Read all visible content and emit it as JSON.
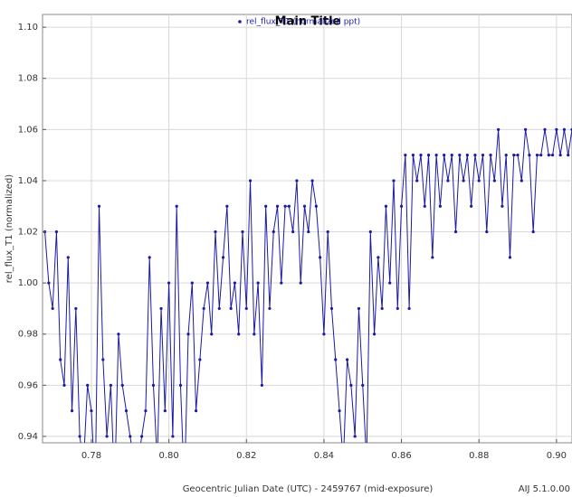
{
  "chart_data": {
    "type": "line",
    "title": "Main Title",
    "x_label": "Geocentric Julian Date (UTC) - 2459767 (mid-exposure)",
    "y_label": "rel_flux_T1 (normalized)",
    "version": "AIJ 5.1.0.00",
    "xlim": [
      0.7674,
      0.904
    ],
    "ylim": [
      0.9375,
      1.105
    ],
    "xticks": [
      0.78,
      {
        "value": 0.8,
        "label": "0.80"
      },
      0.82,
      0.84,
      0.86,
      0.88,
      {
        "value": 0.9,
        "label": "0.90"
      }
    ],
    "yticks": [
      0.94,
      0.96,
      0.98,
      {
        "value": 1,
        "label": "1.00"
      },
      1.02,
      1.04,
      1.06,
      1.08,
      {
        "value": 1.1,
        "label": "1.10"
      }
    ],
    "grid": true,
    "legend": "top",
    "x": [
      0.768,
      0.769,
      0.77,
      0.771,
      0.772,
      0.773,
      0.774,
      0.775,
      0.776,
      0.777,
      0.778,
      0.779,
      0.78,
      0.781,
      0.782,
      0.783,
      0.784,
      0.785,
      0.786,
      0.787,
      0.788,
      0.789,
      0.79,
      0.791,
      0.792,
      0.793,
      0.794,
      0.795,
      0.796,
      0.797,
      0.798,
      0.799,
      0.8,
      0.801,
      0.802,
      0.803,
      0.804,
      0.805,
      0.806,
      0.807,
      0.808,
      0.809,
      0.81,
      0.811,
      0.812,
      0.813,
      0.814,
      0.815,
      0.816,
      0.817,
      0.818,
      0.819,
      0.82,
      0.821,
      0.822,
      0.823,
      0.824,
      0.825,
      0.826,
      0.827,
      0.828,
      0.829,
      0.83,
      0.831,
      0.832,
      0.833,
      0.834,
      0.835,
      0.836,
      0.837,
      0.838,
      0.839,
      0.84,
      0.841,
      0.842,
      0.843,
      0.844,
      0.845,
      0.846,
      0.847,
      0.848,
      0.849,
      0.85,
      0.851,
      0.852,
      0.853,
      0.854,
      0.855,
      0.856,
      0.857,
      0.858,
      0.859,
      0.86,
      0.861,
      0.862,
      0.863,
      0.864,
      0.865,
      0.866,
      0.867,
      0.868,
      0.869,
      0.87,
      0.871,
      0.872,
      0.873,
      0.874,
      0.875,
      0.876,
      0.877,
      0.878,
      0.879,
      0.88,
      0.881,
      0.882,
      0.883,
      0.884,
      0.885,
      0.886,
      0.887,
      0.888,
      0.889,
      0.89,
      0.891,
      0.892,
      0.893,
      0.894,
      0.895,
      0.896,
      0.897,
      0.898,
      0.899,
      0.9,
      0.901,
      0.902,
      0.903,
      0.904
    ],
    "series": [
      {
        "name": "rel_flux_T1 (normalized ppt)",
        "color": "#1a1aa6",
        "values": [
          1.02,
          1.0,
          0.99,
          1.02,
          0.97,
          0.96,
          1.01,
          0.95,
          0.99,
          0.94,
          0.93,
          0.96,
          0.95,
          0.92,
          1.03,
          0.97,
          0.94,
          0.96,
          0.92,
          0.98,
          0.96,
          0.95,
          0.94,
          0.93,
          0.93,
          0.94,
          0.95,
          1.01,
          0.96,
          0.93,
          0.99,
          0.95,
          1.0,
          0.94,
          1.03,
          0.96,
          0.92,
          0.98,
          1.0,
          0.95,
          0.97,
          0.99,
          1.0,
          0.98,
          1.02,
          0.99,
          1.01,
          1.03,
          0.99,
          1.0,
          0.98,
          1.02,
          0.99,
          1.04,
          0.98,
          1.0,
          0.96,
          1.03,
          0.99,
          1.02,
          1.03,
          1.0,
          1.03,
          1.03,
          1.02,
          1.04,
          1.0,
          1.03,
          1.02,
          1.04,
          1.03,
          1.01,
          0.98,
          1.02,
          0.99,
          0.97,
          0.95,
          0.93,
          0.97,
          0.96,
          0.94,
          0.99,
          0.96,
          0.93,
          1.02,
          0.98,
          1.01,
          0.99,
          1.03,
          1.0,
          1.04,
          0.99,
          1.03,
          1.05,
          0.99,
          1.05,
          1.04,
          1.05,
          1.03,
          1.05,
          1.01,
          1.05,
          1.03,
          1.05,
          1.04,
          1.05,
          1.02,
          1.05,
          1.04,
          1.05,
          1.03,
          1.05,
          1.04,
          1.05,
          1.02,
          1.05,
          1.04,
          1.06,
          1.03,
          1.05,
          1.01,
          1.05,
          1.05,
          1.04,
          1.06,
          1.05,
          1.02,
          1.05,
          1.05,
          1.06,
          1.05,
          1.05,
          1.06,
          1.05,
          1.06,
          1.05,
          1.06
        ]
      }
    ]
  }
}
